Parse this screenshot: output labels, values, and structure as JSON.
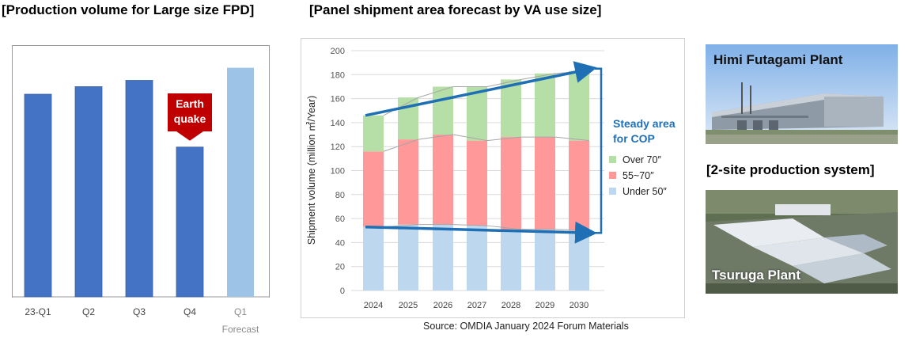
{
  "headings": {
    "left": "[Production volume for Large size FPD]",
    "middle": "[Panel shipment area forecast by VA use size]"
  },
  "colors": {
    "bar_actual": "#4472c4",
    "bar_forecast": "#9dc3e6",
    "callout": "#c00000",
    "over70": "#b6dfa8",
    "mid55_70": "#ff9999",
    "under50": "#bdd7ee",
    "arrow": "#1f6fb5"
  },
  "chart_data": [
    {
      "type": "bar",
      "title": "[Production volume for Large size FPD]",
      "categories": [
        "23-Q1",
        "Q2",
        "Q3",
        "Q4",
        "Q1"
      ],
      "category_sublabels": [
        "",
        "",
        "",
        "",
        "Forecast"
      ],
      "values": [
        161,
        167,
        172,
        119,
        182
      ],
      "forecast_flags": [
        false,
        false,
        false,
        false,
        true
      ],
      "ylim": [
        0,
        200
      ],
      "xlabel": "",
      "ylabel": "",
      "annotation": {
        "text_lines": [
          "Earth",
          "quake"
        ],
        "category": "Q4"
      },
      "grid": false
    },
    {
      "type": "bar",
      "stacked": true,
      "title": "[Panel shipment area forecast by VA use size]",
      "categories": [
        "2024",
        "2025",
        "2026",
        "2027",
        "2028",
        "2029",
        "2030"
      ],
      "series": [
        {
          "name": "Under 50″",
          "values": [
            53,
            55,
            55,
            54,
            51,
            51,
            50
          ]
        },
        {
          "name": "55~70″",
          "values": [
            63,
            71,
            75,
            71,
            77,
            77,
            75
          ]
        },
        {
          "name": "Over 70″",
          "values": [
            30,
            35,
            40,
            45,
            48,
            53,
            58
          ]
        }
      ],
      "ylabel": "Shipment volume (million ㎡/Year)",
      "xlabel": "",
      "ylim": [
        0,
        200
      ],
      "yticks": [
        0,
        20,
        40,
        60,
        80,
        100,
        120,
        140,
        160,
        180,
        200
      ],
      "grid": true,
      "legend_position": "right",
      "legend_order": [
        "Over 70″",
        "55~70″",
        "Under 50″"
      ],
      "annotation": {
        "text_lines": [
          "Steady area",
          "for COP"
        ]
      }
    }
  ],
  "source": "Source: OMDIA January 2024 Forum Materials",
  "plants": {
    "himi": "Himi Futagami Plant",
    "system": "[2-site production system]",
    "tsuruga": "Tsuruga Plant"
  }
}
